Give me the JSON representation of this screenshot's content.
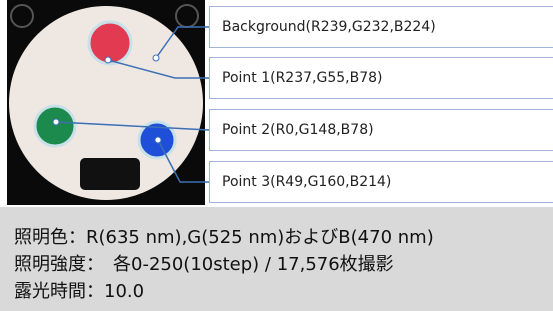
{
  "labels": [
    "Background(R239,G232,B224)",
    "Point 1(R237,G55,B78)",
    "Point 2(R0,G148,B78)",
    "Point 3(R49,G160,B214)"
  ],
  "conditions": [
    "照明色：R(635 nm),G(525 nm)およびB(470 nm)",
    "照明強度：　各0-250(10step) / 17,576枚撮影",
    "露光時間：10.0"
  ]
}
